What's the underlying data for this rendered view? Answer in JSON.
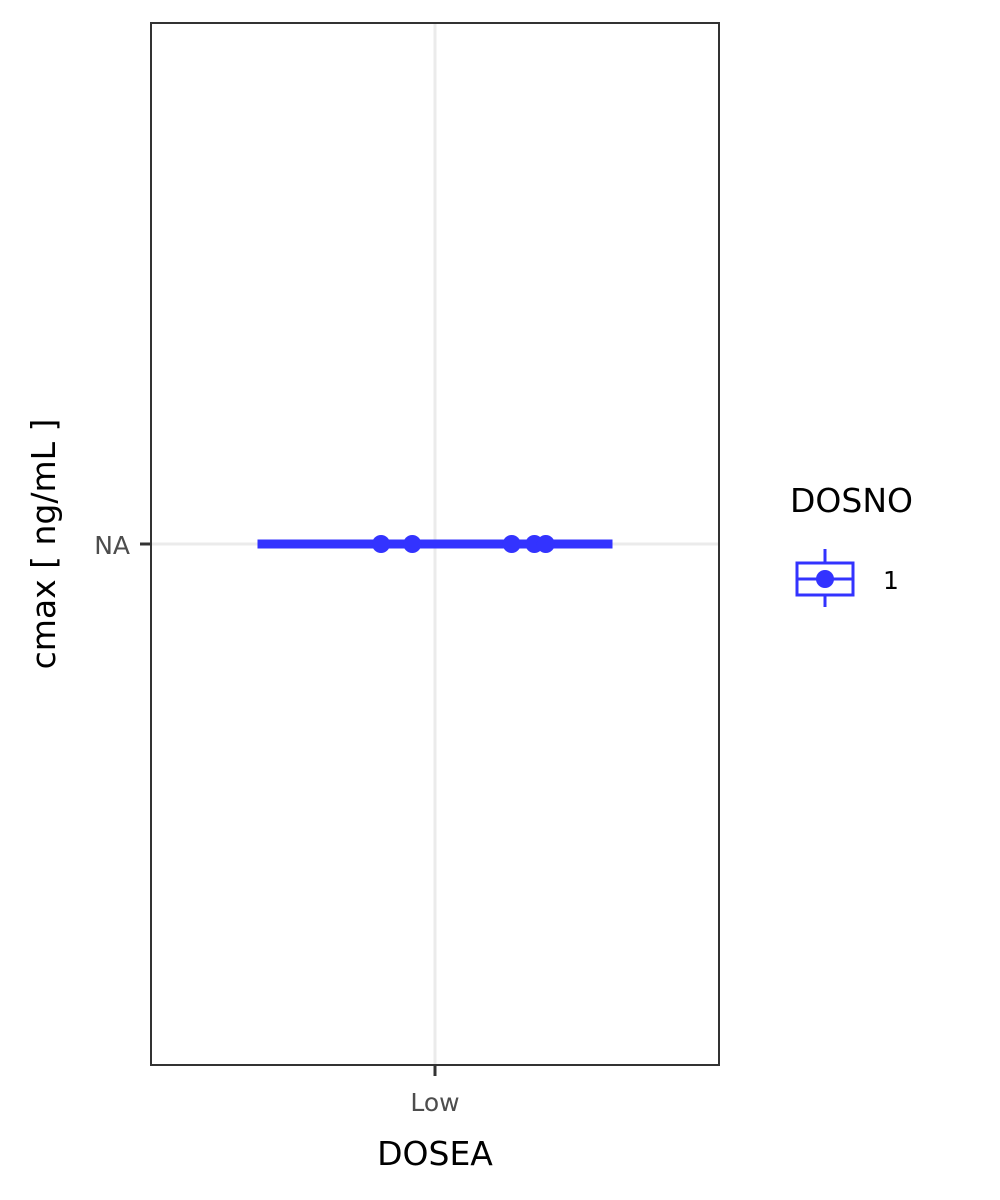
{
  "chart_data": {
    "type": "boxplot",
    "xlabel": "DOSEA",
    "ylabel": "cmax  [ ng/mL ]",
    "categories": [
      "Low"
    ],
    "y_ticks": [
      "NA"
    ],
    "legend": {
      "title": "DOSNO",
      "placement": "right",
      "entries": [
        {
          "label": "1",
          "color": "#3333ff"
        }
      ]
    },
    "series": [
      {
        "name": "1",
        "category": "Low",
        "y": "NA",
        "color": "#3333ff",
        "jitter_points": [
          -0.095,
          -0.04,
          0.135,
          0.175,
          0.195
        ]
      }
    ],
    "grid": true,
    "panel_border": true
  }
}
